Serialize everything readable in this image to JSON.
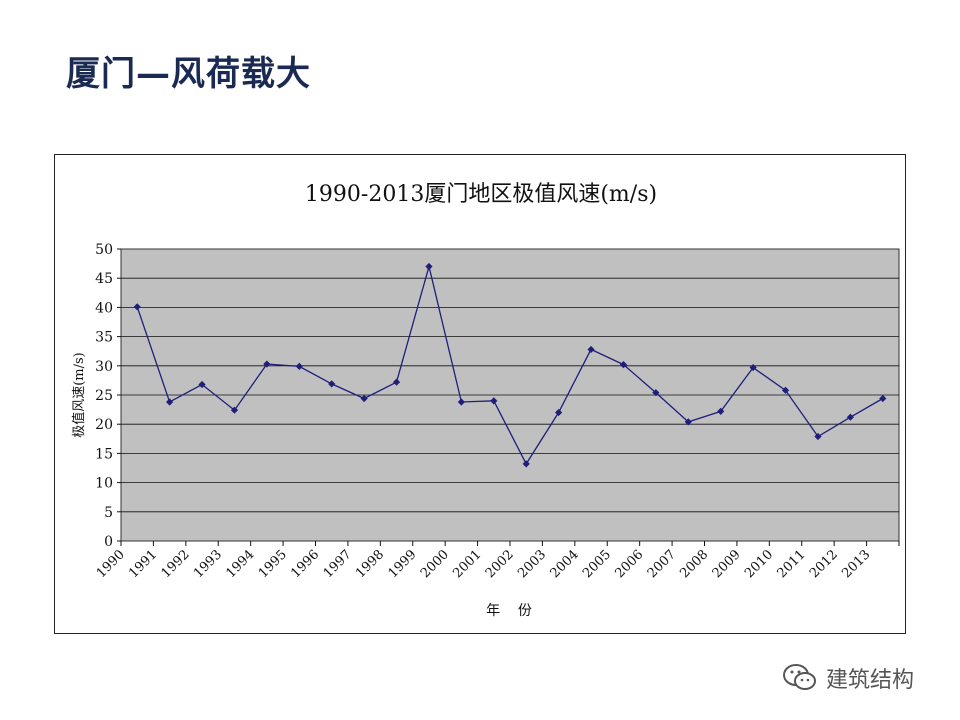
{
  "slide": {
    "title": "厦门—风荷载大"
  },
  "watermark": {
    "text": "建筑结构",
    "icon": "wechat-icon"
  },
  "colors": {
    "plot_background": "#c0c0c0",
    "series": "#1f1f7a",
    "title_text": "#1a2a52"
  },
  "chart_data": {
    "type": "line",
    "title": "1990-2013厦门地区极值风速(m/s)",
    "xlabel": "年    份",
    "ylabel": "极值风速(m/s)",
    "categories": [
      "1990",
      "1991",
      "1992",
      "1993",
      "1994",
      "1995",
      "1996",
      "1997",
      "1998",
      "1999",
      "2000",
      "2001",
      "2002",
      "2003",
      "2004",
      "2005",
      "2006",
      "2007",
      "2008",
      "2009",
      "2010",
      "2011",
      "2012",
      "2013"
    ],
    "series": [
      {
        "values": [
          40.1,
          23.8,
          26.8,
          22.4,
          30.3,
          29.9,
          26.9,
          24.4,
          27.2,
          47.0,
          23.8,
          24.0,
          13.2,
          22.0,
          32.8,
          30.2,
          25.4,
          20.4,
          22.2,
          29.7,
          25.8,
          17.9,
          21.2,
          24.4
        ]
      }
    ],
    "ylim": [
      0,
      50
    ],
    "yticks": [
      "0",
      "5",
      "10",
      "15",
      "20",
      "25",
      "30",
      "35",
      "40",
      "45",
      "50"
    ],
    "grid": true,
    "legend": "none"
  }
}
